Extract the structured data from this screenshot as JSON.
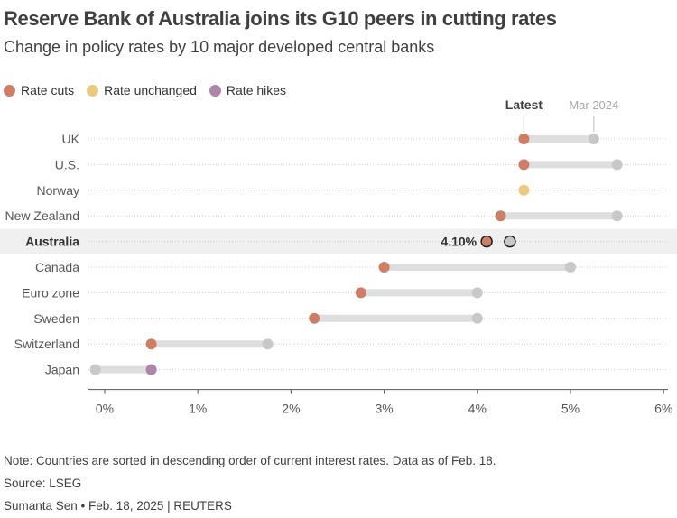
{
  "header": {
    "title": "Reserve Bank of Australia joins its G10 peers in cutting rates",
    "subtitle": "Change in policy rates by 10 major developed central banks"
  },
  "legend": [
    {
      "label": "Rate cuts",
      "color": "#cf7e66"
    },
    {
      "label": "Rate unchanged",
      "color": "#ecc97e"
    },
    {
      "label": "Rate hikes",
      "color": "#b184ad"
    }
  ],
  "chart_data": {
    "type": "dot-plot",
    "title": "Reserve Bank of Australia joins its G10 peers in cutting rates",
    "subtitle": "Change in policy rates by 10 major developed central banks",
    "column_labels": {
      "latest": "Latest",
      "previous": "Mar 2024"
    },
    "x_ticks": [
      "0%",
      "1%",
      "2%",
      "3%",
      "4%",
      "5%",
      "6%"
    ],
    "xlim": [
      -0.15,
      6.1
    ],
    "highlight": {
      "country": "Australia",
      "label": "4.10%"
    },
    "rows": [
      {
        "country": "UK",
        "latest": 4.5,
        "previous": 5.25,
        "status": "cut"
      },
      {
        "country": "U.S.",
        "latest": 4.5,
        "previous": 5.5,
        "status": "cut"
      },
      {
        "country": "Norway",
        "latest": 4.5,
        "previous": 4.5,
        "status": "unchanged"
      },
      {
        "country": "New Zealand",
        "latest": 4.25,
        "previous": 5.5,
        "status": "cut"
      },
      {
        "country": "Australia",
        "latest": 4.1,
        "previous": 4.35,
        "status": "cut"
      },
      {
        "country": "Canada",
        "latest": 3.0,
        "previous": 5.0,
        "status": "cut"
      },
      {
        "country": "Euro zone",
        "latest": 2.75,
        "previous": 4.0,
        "status": "cut"
      },
      {
        "country": "Sweden",
        "latest": 2.25,
        "previous": 4.0,
        "status": "cut"
      },
      {
        "country": "Switzerland",
        "latest": 0.5,
        "previous": 1.75,
        "status": "cut"
      },
      {
        "country": "Japan",
        "latest": 0.5,
        "previous": -0.1,
        "status": "hike"
      }
    ],
    "colors": {
      "cut": "#cf7e66",
      "unchanged": "#ecc97e",
      "hike": "#b184ad",
      "previous": "#c8c8c8",
      "bar": "#dedede"
    }
  },
  "footer": {
    "note": "Note: Countries are sorted in descending order of current interest rates. Data as of Feb. 18.",
    "source": "Source: LSEG",
    "credit": "Sumanta Sen • Feb. 18, 2025 | REUTERS"
  }
}
